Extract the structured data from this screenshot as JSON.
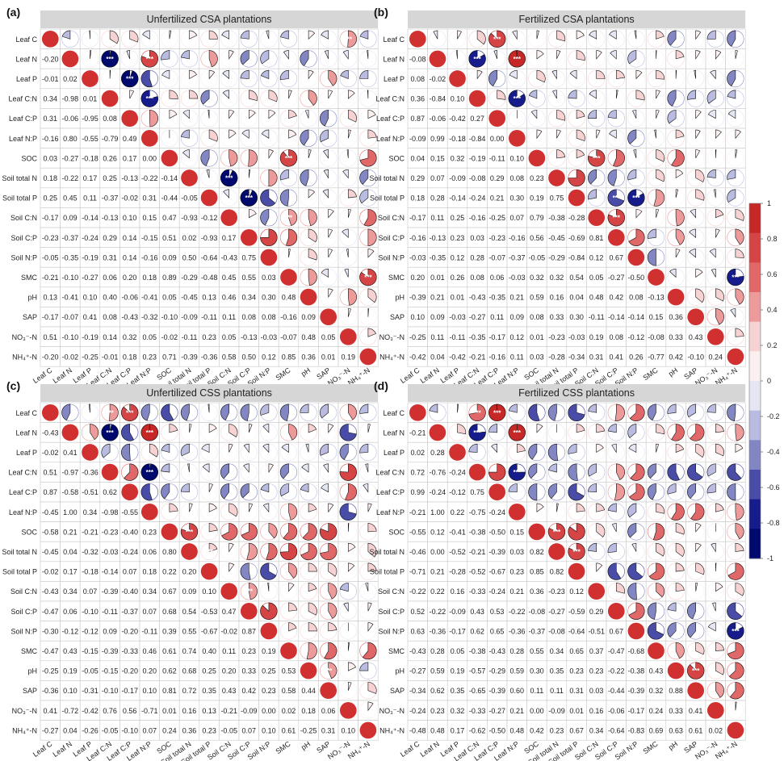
{
  "figure": {
    "variables": [
      "Leaf C",
      "Leaf N",
      "Leaf P",
      "Leaf C:N",
      "Leaf C:P",
      "Leaf N:P",
      "SOC",
      "Soil total N",
      "Soil total P",
      "Soil C:N",
      "Soil C:P",
      "Soil N:P",
      "SMC",
      "pH",
      "SAP",
      "NO₃⁻-N",
      "NH₄⁺-N"
    ],
    "colorbar": {
      "ticks": [
        "1",
        "0.8",
        "0.6",
        "0.4",
        "0.2",
        "0",
        "-0.2",
        "-0.4",
        "-0.6",
        "-0.8",
        "-1"
      ],
      "colors": [
        "#C62828",
        "#D64545",
        "#E06868",
        "#EC9A9A",
        "#F7D2D2",
        "#FBEFEF",
        "#E5E6F3",
        "#B9BCE0",
        "#8287C4",
        "#4A4DA8",
        "#161C8C",
        "#000A6E"
      ]
    },
    "significance_marker": "***"
  },
  "chart_data": [
    {
      "type": "heatmap",
      "panel": "(a)",
      "title": "Unfertilized CSA plantations",
      "lower_triangle": [
        [],
        [
          -0.2
        ],
        [
          -0.01,
          0.02
        ],
        [
          0.34,
          -0.98,
          0.01
        ],
        [
          0.31,
          -0.06,
          -0.95,
          0.08
        ],
        [
          -0.16,
          0.8,
          -0.55,
          -0.79,
          0.49
        ],
        [
          0.03,
          -0.27,
          -0.18,
          0.26,
          0.17,
          0.0
        ],
        [
          0.18,
          -0.22,
          0.17,
          0.25,
          -0.13,
          -0.22,
          -0.14
        ],
        [
          0.25,
          0.45,
          0.11,
          -0.37,
          -0.02,
          0.31,
          -0.44,
          -0.05
        ],
        [
          -0.17,
          0.09,
          -0.14,
          -0.13,
          0.1,
          0.15,
          0.47,
          -0.93,
          -0.12
        ],
        [
          -0.23,
          -0.37,
          -0.24,
          0.29,
          0.14,
          -0.15,
          0.51,
          0.02,
          -0.93,
          0.17
        ],
        [
          -0.05,
          -0.35,
          -0.19,
          0.31,
          0.14,
          -0.16,
          0.09,
          0.5,
          -0.64,
          -0.43,
          0.75
        ],
        [
          -0.21,
          -0.1,
          -0.27,
          0.06,
          0.2,
          0.18,
          0.89,
          -0.29,
          -0.48,
          0.45,
          0.55,
          0.03
        ],
        [
          0.13,
          -0.41,
          0.1,
          0.4,
          -0.06,
          -0.41,
          0.05,
          -0.45,
          0.13,
          0.46,
          0.34,
          0.3,
          0.48
        ],
        [
          -0.17,
          -0.07,
          0.41,
          0.08,
          -0.43,
          -0.32,
          -0.1,
          -0.09,
          -0.11,
          0.11,
          0.08,
          0.08,
          -0.16,
          0.09
        ],
        [
          0.51,
          -0.1,
          -0.19,
          0.14,
          0.32,
          0.05,
          -0.02,
          -0.11,
          0.23,
          0.05,
          -0.13,
          -0.03,
          -0.07,
          0.48,
          0.05
        ],
        [
          -0.2,
          -0.02,
          -0.25,
          -0.01,
          0.18,
          0.23,
          0.71,
          -0.39,
          -0.36,
          0.58,
          0.5,
          0.12,
          0.85,
          0.36,
          0.01,
          0.19
        ]
      ],
      "significant_upper_cells": [
        [
          0,
          15
        ],
        [
          1,
          3
        ],
        [
          1,
          5
        ],
        [
          2,
          4
        ],
        [
          3,
          5
        ],
        [
          6,
          12
        ],
        [
          7,
          9
        ],
        [
          8,
          10
        ],
        [
          9,
          12
        ],
        [
          12,
          16
        ]
      ]
    },
    {
      "type": "heatmap",
      "panel": "(b)",
      "title": "Fertilized CSA plantations",
      "lower_triangle": [
        [],
        [
          -0.08
        ],
        [
          0.08,
          -0.02
        ],
        [
          0.36,
          -0.84,
          0.1
        ],
        [
          0.87,
          -0.06,
          -0.42,
          0.27
        ],
        [
          -0.09,
          0.99,
          -0.18,
          -0.84,
          0.0
        ],
        [
          0.04,
          0.15,
          0.32,
          -0.19,
          -0.11,
          0.1
        ],
        [
          0.29,
          0.07,
          -0.09,
          -0.08,
          0.29,
          0.08,
          0.23
        ],
        [
          0.18,
          0.28,
          -0.14,
          -0.24,
          0.21,
          0.3,
          0.19,
          0.75
        ],
        [
          -0.17,
          0.11,
          0.25,
          -0.16,
          -0.25,
          0.07,
          0.79,
          -0.38,
          -0.28
        ],
        [
          -0.16,
          -0.13,
          0.23,
          0.03,
          -0.23,
          -0.16,
          0.56,
          -0.45,
          -0.69,
          0.81
        ],
        [
          -0.03,
          -0.35,
          0.12,
          0.28,
          -0.07,
          -0.37,
          -0.05,
          -0.29,
          -0.84,
          0.12,
          0.67
        ],
        [
          0.2,
          0.01,
          0.26,
          0.08,
          0.06,
          -0.03,
          0.32,
          0.32,
          0.54,
          0.05,
          -0.27,
          -0.5
        ],
        [
          -0.39,
          0.21,
          0.01,
          -0.43,
          -0.35,
          0.21,
          0.59,
          0.16,
          0.04,
          0.48,
          0.42,
          0.08,
          -0.13
        ],
        [
          0.1,
          0.09,
          -0.03,
          -0.27,
          0.11,
          0.09,
          0.08,
          0.33,
          0.3,
          -0.11,
          -0.14,
          -0.14,
          0.15,
          0.36
        ],
        [
          -0.25,
          0.11,
          -0.11,
          -0.35,
          -0.17,
          0.12,
          0.01,
          -0.23,
          -0.03,
          0.19,
          0.08,
          -0.12,
          -0.08,
          0.33,
          0.43
        ],
        [
          -0.42,
          0.04,
          -0.42,
          -0.21,
          -0.16,
          0.11,
          0.03,
          -0.28,
          -0.34,
          0.31,
          0.41,
          0.26,
          -0.77,
          0.42,
          -0.1,
          0.24
        ]
      ],
      "significant_upper_cells": [
        [
          0,
          4
        ],
        [
          1,
          3
        ],
        [
          1,
          5
        ],
        [
          3,
          5
        ],
        [
          6,
          9
        ],
        [
          8,
          10
        ],
        [
          8,
          11
        ],
        [
          9,
          10
        ],
        [
          12,
          16
        ]
      ]
    },
    {
      "type": "heatmap",
      "panel": "(c)",
      "title": "Unfertilized CSS plantations",
      "lower_triangle": [
        [],
        [
          -0.43
        ],
        [
          -0.02,
          0.41
        ],
        [
          0.51,
          -0.97,
          -0.36
        ],
        [
          0.87,
          -0.58,
          -0.51,
          0.62
        ],
        [
          -0.45,
          1.0,
          0.34,
          -0.98,
          -0.55
        ],
        [
          -0.58,
          0.21,
          -0.21,
          -0.23,
          -0.4,
          0.23
        ],
        [
          -0.45,
          0.04,
          -0.32,
          -0.03,
          -0.24,
          0.06,
          0.8
        ],
        [
          -0.02,
          0.17,
          -0.18,
          -0.14,
          0.07,
          0.18,
          0.22,
          0.2
        ],
        [
          -0.43,
          0.34,
          0.07,
          -0.39,
          -0.4,
          0.34,
          0.67,
          0.09,
          0.1
        ],
        [
          -0.47,
          0.06,
          -0.1,
          -0.11,
          -0.37,
          0.07,
          0.68,
          0.54,
          -0.53,
          0.47
        ],
        [
          -0.3,
          -0.12,
          -0.12,
          0.09,
          -0.2,
          -0.11,
          0.39,
          0.55,
          -0.67,
          -0.02,
          0.87
        ],
        [
          -0.47,
          0.43,
          -0.15,
          -0.39,
          -0.33,
          0.46,
          0.61,
          0.74,
          0.4,
          0.11,
          0.23,
          0.19
        ],
        [
          -0.25,
          0.19,
          -0.05,
          -0.15,
          -0.2,
          0.2,
          0.62,
          0.68,
          0.25,
          0.2,
          0.33,
          0.25,
          0.53
        ],
        [
          -0.36,
          0.1,
          -0.31,
          -0.1,
          -0.17,
          0.1,
          0.81,
          0.72,
          0.35,
          0.43,
          0.42,
          0.23,
          0.58,
          0.44
        ],
        [
          0.41,
          -0.72,
          -0.42,
          0.76,
          0.56,
          -0.71,
          0.01,
          0.16,
          0.13,
          -0.21,
          -0.09,
          0.0,
          0.02,
          0.18,
          0.06
        ],
        [
          -0.27,
          0.04,
          -0.26,
          -0.05,
          -0.1,
          0.07,
          0.24,
          0.36,
          0.23,
          -0.05,
          0.07,
          0.1,
          0.61,
          -0.25,
          0.31,
          0.1
        ]
      ],
      "significant_upper_cells": [
        [
          0,
          3
        ],
        [
          0,
          4
        ],
        [
          1,
          3
        ],
        [
          1,
          5
        ],
        [
          3,
          5
        ],
        [
          6,
          7
        ],
        [
          7,
          8
        ],
        [
          9,
          10
        ],
        [
          13,
          14
        ]
      ]
    },
    {
      "type": "heatmap",
      "panel": "(d)",
      "title": "Fertilized CSS plantations",
      "lower_triangle": [
        [],
        [
          -0.21
        ],
        [
          0.02,
          0.28
        ],
        [
          0.72,
          -0.76,
          -0.24
        ],
        [
          0.99,
          -0.24,
          -0.12,
          0.75
        ],
        [
          -0.21,
          1.0,
          0.22,
          -0.75,
          -0.24
        ],
        [
          -0.55,
          0.12,
          -0.41,
          -0.38,
          -0.5,
          0.15
        ],
        [
          -0.46,
          0.0,
          -0.52,
          -0.21,
          -0.39,
          0.03,
          0.82
        ],
        [
          -0.71,
          0.21,
          -0.28,
          -0.52,
          -0.67,
          0.23,
          0.85,
          0.82
        ],
        [
          -0.22,
          0.22,
          0.16,
          -0.33,
          -0.24,
          0.21,
          0.36,
          -0.23,
          0.12
        ],
        [
          0.52,
          -0.22,
          -0.09,
          0.43,
          0.53,
          -0.22,
          -0.08,
          -0.27,
          -0.59,
          0.29
        ],
        [
          0.63,
          -0.36,
          -0.17,
          0.62,
          0.65,
          -0.36,
          -0.37,
          -0.08,
          -0.64,
          -0.51,
          0.67
        ],
        [
          -0.43,
          0.28,
          0.05,
          -0.38,
          -0.43,
          0.28,
          0.55,
          0.34,
          0.65,
          0.37,
          -0.47,
          -0.68
        ],
        [
          -0.27,
          0.59,
          0.19,
          -0.57,
          -0.29,
          0.59,
          0.3,
          0.35,
          0.23,
          0.23,
          -0.22,
          -0.38,
          0.43
        ],
        [
          -0.34,
          0.62,
          0.35,
          -0.65,
          -0.39,
          0.6,
          0.11,
          0.11,
          0.31,
          0.03,
          -0.44,
          -0.39,
          0.32,
          0.88
        ],
        [
          -0.24,
          0.23,
          0.32,
          -0.33,
          -0.27,
          0.21,
          0.0,
          -0.09,
          0.01,
          0.16,
          -0.06,
          -0.17,
          0.24,
          0.33,
          0.41
        ],
        [
          -0.48,
          0.48,
          0.17,
          -0.62,
          -0.5,
          0.48,
          0.42,
          0.23,
          0.67,
          0.34,
          -0.64,
          -0.83,
          0.69,
          0.63,
          0.61,
          0.02
        ]
      ],
      "significant_upper_cells": [
        [
          0,
          3
        ],
        [
          0,
          4
        ],
        [
          1,
          3
        ],
        [
          1,
          5
        ],
        [
          3,
          5
        ],
        [
          6,
          7
        ],
        [
          7,
          8
        ],
        [
          13,
          14
        ],
        [
          11,
          16
        ]
      ]
    }
  ]
}
